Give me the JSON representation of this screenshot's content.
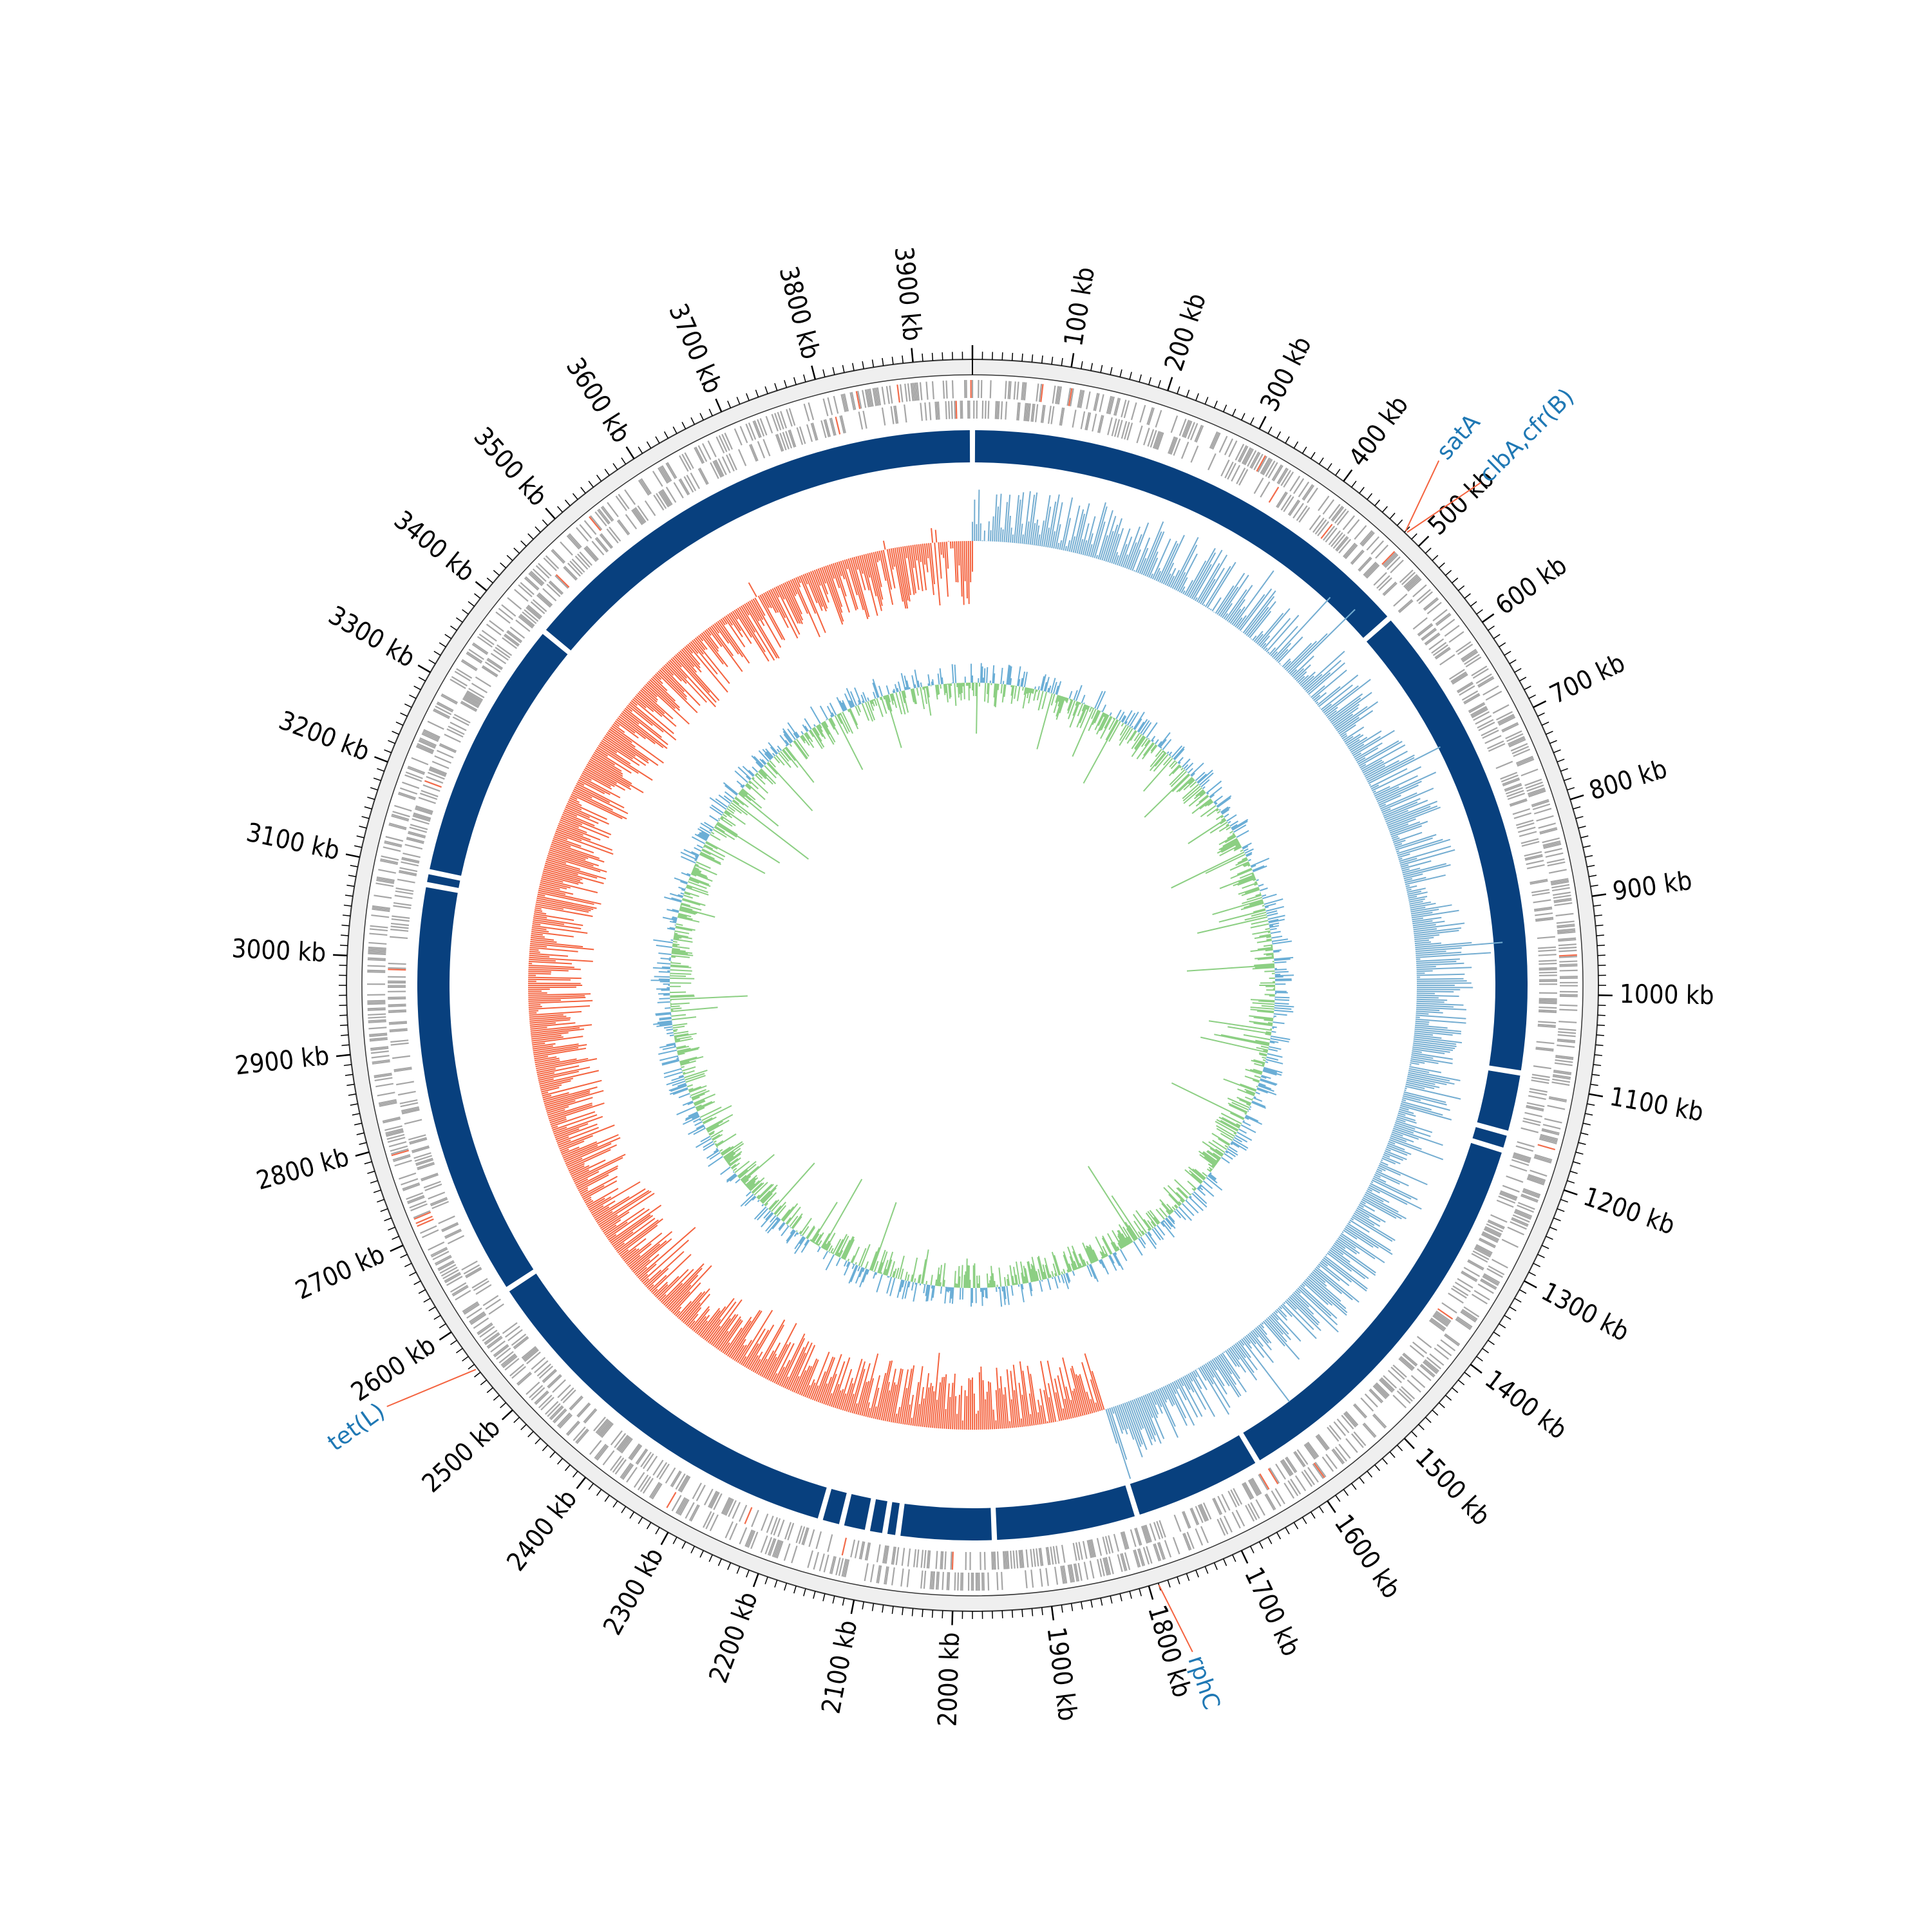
{
  "genome": {
    "length_kb": 3960,
    "major_tick_kb": 100,
    "minor_tick_kb": 10
  },
  "tick_labels": [
    "100 kb",
    "200 kb",
    "300 kb",
    "400 kb",
    "500 kb",
    "600 kb",
    "700 kb",
    "800 kb",
    "900 kb",
    "1000 kb",
    "1100 kb",
    "1200 kb",
    "1300 kb",
    "1400 kb",
    "1500 kb",
    "1600 kb",
    "1700 kb",
    "1800 kb",
    "1900 kb",
    "2000 kb",
    "2100 kb",
    "2200 kb",
    "2300 kb",
    "2400 kb",
    "2500 kb",
    "2600 kb",
    "2700 kb",
    "2800 kb",
    "2900 kb",
    "3000 kb",
    "3100 kb",
    "3200 kb",
    "3300 kb",
    "3400 kb",
    "3500 kb",
    "3600 kb",
    "3700 kb",
    "3800 kb",
    "3900 kb"
  ],
  "gene_annotations": [
    {
      "label": "satA",
      "position_kb": 480
    },
    {
      "label": "clbA,cfr(B)",
      "position_kb": 482
    },
    {
      "label": "rphC",
      "position_kb": 1790
    },
    {
      "label": "tet(L)",
      "position_kb": 2555
    }
  ],
  "contig_gaps_kb": [
    0,
    535,
    1090,
    1160,
    1180,
    1640,
    1790,
    1955,
    2065,
    2080,
    2100,
    2130,
    2155,
    2605,
    3085,
    3100,
    3405,
    3960
  ],
  "gc_skew": {
    "positive_regions_kb": [
      [
        0,
        1790
      ]
    ],
    "negative_regions_kb": [
      [
        1790,
        3960
      ]
    ]
  },
  "colors": {
    "ring_background": "#efefef",
    "ring_border": "#333333",
    "cds_gray": "#a6a6a6",
    "cds_highlight": "#f26b4a",
    "contig_blue": "#08407e",
    "gc_skew_positive": "#74add1",
    "gc_skew_negative": "#f4633f",
    "gc_content_line": "#6baed6",
    "gc_content_fill": "#8ccf83",
    "annotation_text": "#1f78b4",
    "annotation_line": "#f4633f"
  }
}
